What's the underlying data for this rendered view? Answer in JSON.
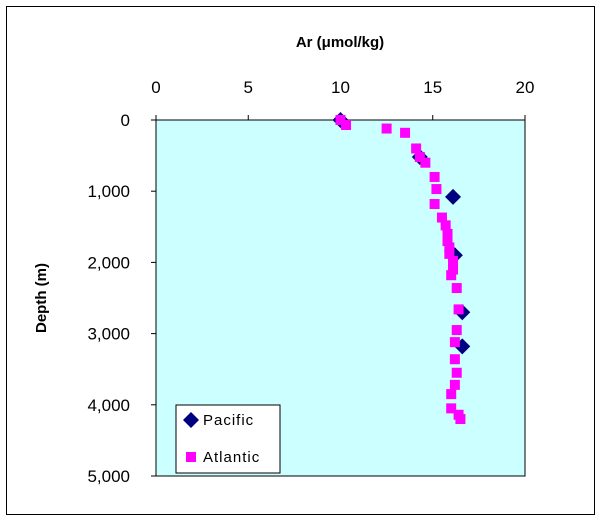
{
  "chart_data": {
    "type": "scatter",
    "title": "",
    "xlabel": "Ar (μmol/kg)",
    "ylabel": "Depth (m)",
    "xlim": [
      0,
      20
    ],
    "ylim": [
      0,
      5000
    ],
    "y_inverted": true,
    "x_axis_position": "top",
    "x_ticks": [
      "0",
      "5",
      "10",
      "15",
      "20"
    ],
    "y_ticks": [
      "0",
      "1,000",
      "2,000",
      "3,000",
      "4,000",
      "5,000"
    ],
    "grid": false,
    "legend_position": "bottom-left",
    "plot_background": "#ccffff",
    "series": [
      {
        "name": "Pacific",
        "marker": "diamond",
        "color": "#000080",
        "points": [
          {
            "x": 10.0,
            "y": 0
          },
          {
            "x": 14.3,
            "y": 520
          },
          {
            "x": 16.1,
            "y": 1080
          },
          {
            "x": 16.2,
            "y": 1900
          },
          {
            "x": 16.6,
            "y": 2700
          },
          {
            "x": 16.6,
            "y": 3180
          }
        ]
      },
      {
        "name": "Atlantic",
        "marker": "square",
        "color": "#ff00ff",
        "points": [
          {
            "x": 10.0,
            "y": 0
          },
          {
            "x": 10.3,
            "y": 70
          },
          {
            "x": 12.5,
            "y": 120
          },
          {
            "x": 13.5,
            "y": 180
          },
          {
            "x": 14.1,
            "y": 400
          },
          {
            "x": 14.3,
            "y": 520
          },
          {
            "x": 14.6,
            "y": 600
          },
          {
            "x": 15.1,
            "y": 800
          },
          {
            "x": 15.2,
            "y": 970
          },
          {
            "x": 15.1,
            "y": 1180
          },
          {
            "x": 15.5,
            "y": 1370
          },
          {
            "x": 15.7,
            "y": 1480
          },
          {
            "x": 15.8,
            "y": 1600
          },
          {
            "x": 15.8,
            "y": 1700
          },
          {
            "x": 15.9,
            "y": 1790
          },
          {
            "x": 15.9,
            "y": 1880
          },
          {
            "x": 16.1,
            "y": 1980
          },
          {
            "x": 16.1,
            "y": 2100
          },
          {
            "x": 16.0,
            "y": 2180
          },
          {
            "x": 16.3,
            "y": 2360
          },
          {
            "x": 16.4,
            "y": 2660
          },
          {
            "x": 16.3,
            "y": 2950
          },
          {
            "x": 16.2,
            "y": 3120
          },
          {
            "x": 16.2,
            "y": 3360
          },
          {
            "x": 16.3,
            "y": 3550
          },
          {
            "x": 16.2,
            "y": 3720
          },
          {
            "x": 16.0,
            "y": 3850
          },
          {
            "x": 16.0,
            "y": 4050
          },
          {
            "x": 16.4,
            "y": 4140
          },
          {
            "x": 16.5,
            "y": 4200
          }
        ]
      }
    ]
  }
}
